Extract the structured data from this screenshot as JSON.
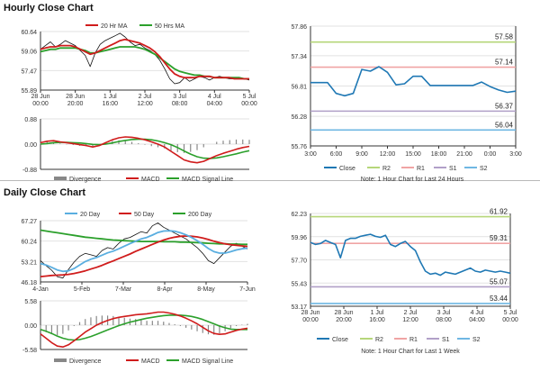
{
  "sections": {
    "hourly_title": "Hourly Close Chart",
    "daily_title": "Daily Close Chart"
  },
  "colors": {
    "close": "#1f78b4",
    "ma_fast": "#d01c1c",
    "ma_slow": "#2ca02c",
    "ma_extra": "#5aaee0",
    "r2": "#b6d67a",
    "r1": "#f0a4a4",
    "s1": "#b1a0c8",
    "s2": "#6fb7e3",
    "divergence": "#888888",
    "grid": "#e2e2e2",
    "axis": "#333333"
  },
  "chart_data": [
    {
      "id": "hourly_price",
      "type": "line",
      "legend": [
        "20 Hr MA",
        "50 Hrs MA"
      ],
      "yticks": [
        60.64,
        59.06,
        57.47,
        55.89
      ],
      "ylim": [
        55.89,
        60.64
      ],
      "xticks": [
        "28 Jun 00:00",
        "28 Jun 20:00",
        "1 Jul 16:00",
        "2 Jul 12:00",
        "3 Jul 08:00",
        "4 Jul 04:00",
        "5 Jul 00:00"
      ],
      "close": [
        59.2,
        59.5,
        59.8,
        59.4,
        59.6,
        59.9,
        59.7,
        59.5,
        59.1,
        58.7,
        57.8,
        58.9,
        59.6,
        59.9,
        60.1,
        60.3,
        60.5,
        60.2,
        59.8,
        59.5,
        59.6,
        59.3,
        59.1,
        58.8,
        58.3,
        57.6,
        56.8,
        56.4,
        56.5,
        56.9,
        56.6,
        56.8,
        57.0,
        56.9,
        56.7,
        56.9,
        57.0,
        56.9,
        56.8,
        56.8,
        56.9,
        56.8,
        56.7
      ],
      "ma20": [
        59.2,
        59.3,
        59.4,
        59.4,
        59.5,
        59.5,
        59.5,
        59.4,
        59.2,
        59.0,
        58.8,
        58.9,
        59.1,
        59.3,
        59.5,
        59.7,
        59.9,
        60.0,
        59.9,
        59.8,
        59.7,
        59.5,
        59.3,
        59.0,
        58.6,
        58.1,
        57.6,
        57.2,
        57.0,
        56.9,
        56.9,
        56.9,
        57.0,
        57.0,
        57.0,
        56.9,
        56.9,
        56.9,
        56.9,
        56.8,
        56.8,
        56.8,
        56.8
      ],
      "ma50": [
        59.0,
        59.1,
        59.2,
        59.2,
        59.3,
        59.3,
        59.3,
        59.3,
        59.2,
        59.1,
        58.9,
        58.9,
        59.0,
        59.1,
        59.2,
        59.3,
        59.4,
        59.4,
        59.4,
        59.4,
        59.3,
        59.2,
        59.0,
        58.8,
        58.5,
        58.2,
        57.9,
        57.6,
        57.4,
        57.3,
        57.2,
        57.1,
        57.1,
        57.0,
        57.0,
        56.9,
        56.9,
        56.9,
        56.9,
        56.9,
        56.9,
        56.8,
        56.8
      ]
    },
    {
      "id": "hourly_macd",
      "type": "line",
      "legend": [
        "Divergence",
        "MACD",
        "MACD Signal Line"
      ],
      "yticks": [
        0.88,
        0.0,
        -0.88
      ],
      "ylim": [
        -0.88,
        0.88
      ],
      "macd": [
        0.05,
        0.1,
        0.12,
        0.08,
        0.05,
        0.02,
        -0.02,
        -0.05,
        -0.1,
        -0.05,
        0.05,
        0.15,
        0.22,
        0.25,
        0.24,
        0.2,
        0.15,
        0.08,
        0.0,
        -0.1,
        -0.25,
        -0.4,
        -0.55,
        -0.62,
        -0.65,
        -0.6,
        -0.5,
        -0.4,
        -0.32,
        -0.25,
        -0.18,
        -0.12,
        -0.08
      ],
      "signal": [
        0.0,
        0.02,
        0.05,
        0.06,
        0.06,
        0.05,
        0.04,
        0.02,
        -0.01,
        -0.02,
        0.0,
        0.04,
        0.09,
        0.13,
        0.16,
        0.17,
        0.17,
        0.15,
        0.11,
        0.05,
        -0.02,
        -0.12,
        -0.24,
        -0.35,
        -0.44,
        -0.49,
        -0.5,
        -0.48,
        -0.44,
        -0.39,
        -0.34,
        -0.28,
        -0.23
      ],
      "divergence": [
        0.05,
        0.08,
        0.07,
        0.02,
        -0.01,
        -0.03,
        -0.06,
        -0.07,
        -0.09,
        -0.03,
        0.05,
        0.11,
        0.13,
        0.12,
        0.08,
        0.03,
        -0.02,
        -0.07,
        -0.11,
        -0.15,
        -0.23,
        -0.28,
        -0.31,
        -0.27,
        -0.21,
        -0.11,
        0.0,
        0.08,
        0.12,
        0.14,
        0.16,
        0.16,
        0.15
      ]
    },
    {
      "id": "hourly_pivot",
      "type": "line",
      "yticks": [
        57.86,
        57.34,
        56.81,
        56.28,
        55.76
      ],
      "ylim": [
        55.76,
        57.86
      ],
      "xticks": [
        "3:00",
        "6:00",
        "9:00",
        "12:00",
        "15:00",
        "18:00",
        "21:00",
        "0:00",
        "3:00"
      ],
      "levels": {
        "R2": 57.58,
        "R1": 57.14,
        "S1": 56.37,
        "S2": 56.04
      },
      "level_labels": [
        "57.58",
        "57.14",
        "56.37",
        "56.04"
      ],
      "close": [
        56.87,
        56.87,
        56.87,
        56.68,
        56.64,
        56.68,
        57.1,
        57.07,
        57.15,
        57.05,
        56.83,
        56.85,
        56.98,
        56.98,
        56.82,
        56.82,
        56.82,
        56.82,
        56.82,
        56.82,
        56.88,
        56.8,
        56.74,
        56.7,
        56.72
      ],
      "legend": [
        "Close",
        "R2",
        "R1",
        "S1",
        "S2"
      ],
      "note": "Note: 1 Hour Chart for Last 24 Hours"
    },
    {
      "id": "daily_price",
      "type": "line",
      "legend": [
        "20 Day",
        "50 Day",
        "200 Day"
      ],
      "yticks": [
        67.27,
        60.24,
        53.21,
        46.18
      ],
      "ylim": [
        46.18,
        67.27
      ],
      "xticks": [
        "4-Jan",
        "5-Feb",
        "7-Mar",
        "8-Apr",
        "8-May",
        "7-Jun"
      ],
      "close": [
        53.5,
        51.8,
        50.2,
        48.0,
        47.5,
        50.5,
        53.0,
        55.0,
        56.0,
        55.5,
        55.0,
        57.0,
        58.0,
        57.5,
        59.5,
        61.0,
        61.5,
        62.5,
        63.5,
        63.0,
        65.5,
        66.5,
        65.0,
        64.0,
        63.0,
        62.0,
        61.0,
        59.5,
        58.0,
        56.0,
        53.5,
        52.5,
        54.5,
        56.5,
        58.5,
        59.5,
        58.5,
        57.5
      ],
      "ma20": [
        52.5,
        52.0,
        51.2,
        50.3,
        49.8,
        50.0,
        50.8,
        52.0,
        53.2,
        54.0,
        54.6,
        55.4,
        56.2,
        56.8,
        57.6,
        58.5,
        59.4,
        60.2,
        61.0,
        61.5,
        62.3,
        63.2,
        63.7,
        63.8,
        63.6,
        63.1,
        62.4,
        61.5,
        60.4,
        59.1,
        57.7,
        56.6,
        56.1,
        56.1,
        56.6,
        57.2,
        57.6,
        57.8
      ],
      "ma50": [
        48.0,
        48.2,
        48.4,
        48.5,
        48.6,
        48.8,
        49.1,
        49.5,
        50.0,
        50.6,
        51.2,
        51.9,
        52.7,
        53.4,
        54.2,
        55.0,
        55.8,
        56.7,
        57.5,
        58.3,
        59.1,
        59.9,
        60.6,
        61.2,
        61.6,
        61.9,
        62.0,
        61.9,
        61.7,
        61.3,
        60.8,
        60.2,
        59.7,
        59.3,
        59.0,
        58.8,
        58.6,
        58.4
      ],
      "ma200": [
        64.0,
        63.7,
        63.4,
        63.1,
        62.8,
        62.5,
        62.2,
        61.9,
        61.6,
        61.4,
        61.2,
        61.0,
        60.8,
        60.6,
        60.5,
        60.4,
        60.3,
        60.2,
        60.1,
        60.1,
        60.1,
        60.1,
        60.0,
        60.0,
        60.0,
        59.9,
        59.9,
        59.8,
        59.7,
        59.6,
        59.5,
        59.4,
        59.3,
        59.3,
        59.2,
        59.2,
        59.1,
        59.1
      ]
    },
    {
      "id": "daily_macd",
      "type": "line",
      "legend": [
        "Divergence",
        "MACD",
        "MACD Signal Line"
      ],
      "yticks": [
        5.58,
        0.0,
        -5.58
      ],
      "ylim": [
        -5.58,
        5.58
      ],
      "macd": [
        -2.0,
        -3.0,
        -4.0,
        -4.8,
        -5.0,
        -4.5,
        -3.6,
        -2.6,
        -1.6,
        -0.8,
        0.0,
        0.6,
        1.1,
        1.5,
        1.8,
        2.0,
        2.2,
        2.4,
        2.5,
        2.6,
        2.8,
        3.0,
        3.0,
        2.8,
        2.5,
        2.1,
        1.6,
        1.0,
        0.3,
        -0.5,
        -1.3,
        -1.9,
        -2.1,
        -2.0,
        -1.6,
        -1.2,
        -0.9,
        -0.7
      ],
      "signal": [
        -1.0,
        -1.4,
        -1.9,
        -2.5,
        -3.0,
        -3.3,
        -3.4,
        -3.3,
        -3.0,
        -2.6,
        -2.1,
        -1.6,
        -1.1,
        -0.6,
        -0.1,
        0.3,
        0.7,
        1.0,
        1.3,
        1.6,
        1.8,
        2.0,
        2.2,
        2.3,
        2.3,
        2.3,
        2.2,
        2.0,
        1.7,
        1.3,
        0.8,
        0.3,
        -0.2,
        -0.6,
        -0.9,
        -1.0,
        -1.0,
        -1.0
      ],
      "divergence": [
        -1.0,
        -1.6,
        -2.1,
        -2.3,
        -2.0,
        -1.2,
        -0.2,
        0.7,
        1.4,
        1.8,
        2.1,
        2.2,
        2.2,
        2.1,
        1.9,
        1.7,
        1.5,
        1.4,
        1.2,
        1.0,
        1.0,
        1.0,
        0.8,
        0.5,
        0.2,
        -0.2,
        -0.6,
        -1.0,
        -1.4,
        -1.8,
        -2.1,
        -2.2,
        -1.9,
        -1.4,
        -0.7,
        -0.2,
        0.1,
        0.3
      ]
    },
    {
      "id": "daily_pivot",
      "type": "line",
      "yticks": [
        62.23,
        59.96,
        57.7,
        55.43,
        53.17
      ],
      "ylim": [
        53.17,
        62.23
      ],
      "xticks": [
        "28 Jun 00:00",
        "28 Jun 20:00",
        "1 Jul 16:00",
        "2 Jul 12:00",
        "3 Jul 08:00",
        "4 Jul 04:00",
        "5 Jul 00:00"
      ],
      "levels": {
        "R2": 61.92,
        "R1": 59.31,
        "S1": 55.07,
        "S2": 53.44
      },
      "level_labels": [
        "61.92",
        "59.31",
        "55.07",
        "53.44"
      ],
      "close": [
        59.4,
        59.2,
        59.3,
        59.6,
        59.4,
        59.2,
        57.9,
        59.6,
        59.8,
        59.8,
        60.0,
        60.1,
        60.2,
        60.0,
        59.9,
        60.1,
        59.2,
        59.0,
        59.3,
        59.5,
        59.0,
        58.6,
        57.5,
        56.6,
        56.3,
        56.4,
        56.2,
        56.5,
        56.4,
        56.3,
        56.5,
        56.7,
        56.9,
        56.6,
        56.5,
        56.7,
        56.6,
        56.5,
        56.6,
        56.5,
        56.4
      ],
      "legend": [
        "Close",
        "R2",
        "R1",
        "S1",
        "S2"
      ],
      "note": "Note: 1 Hour Chart for Last 1 Week"
    }
  ]
}
